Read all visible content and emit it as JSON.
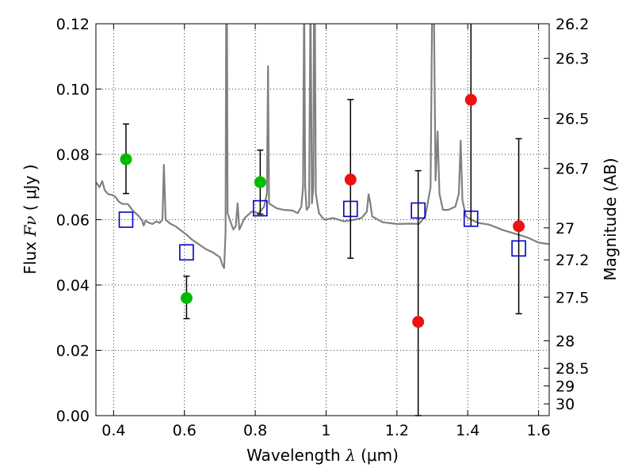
{
  "chart_data": {
    "type": "scatter",
    "title": "",
    "xlabel": {
      "text": "Wavelength ",
      "symbol": "λ",
      "unit": " (μm)"
    },
    "ylabel": {
      "text": "Flux ",
      "symbol": "Fν",
      "unit": " ( μJy )"
    },
    "ylabel_right": "Magnitude (AB)",
    "xlim": [
      0.35,
      1.63
    ],
    "ylim": [
      0.0,
      0.12
    ],
    "grid": true,
    "x_ticks": [
      0.4,
      0.6,
      0.8,
      1.0,
      1.2,
      1.4,
      1.6
    ],
    "x_tick_labels": [
      "0.4",
      "0.6",
      "0.8",
      "1",
      "1.2",
      "1.4",
      "1.6"
    ],
    "y_ticks": [
      0.0,
      0.02,
      0.04,
      0.06,
      0.08,
      0.1,
      0.12
    ],
    "y_tick_labels": [
      "0.00",
      "0.02",
      "0.04",
      "0.06",
      "0.08",
      "0.10",
      "0.12"
    ],
    "right_ticks": [
      {
        "label": "26.2",
        "flux": 0.12
      },
      {
        "label": "26.3",
        "flux": 0.1094
      },
      {
        "label": "26.5",
        "flux": 0.091
      },
      {
        "label": "26.7",
        "flux": 0.0757
      },
      {
        "label": "27",
        "flux": 0.0575
      },
      {
        "label": "27.2",
        "flux": 0.0477
      },
      {
        "label": "27.5",
        "flux": 0.0363
      },
      {
        "label": "28",
        "flux": 0.0229
      },
      {
        "label": "28.5",
        "flux": 0.0145
      },
      {
        "label": "29",
        "flux": 0.0091
      },
      {
        "label": "30",
        "flux": 0.0036
      }
    ],
    "series": [
      {
        "marker": "circle",
        "color": "#00bb00",
        "points": [
          {
            "x": 0.435,
            "y": 0.0785,
            "ylo": 0.068,
            "yhi": 0.0893
          },
          {
            "x": 0.606,
            "y": 0.036,
            "ylo": 0.0297,
            "yhi": 0.0427
          },
          {
            "x": 0.814,
            "y": 0.0715,
            "ylo": 0.0617,
            "yhi": 0.0813
          }
        ]
      },
      {
        "marker": "circle",
        "color": "#ee1111",
        "points": [
          {
            "x": 1.069,
            "y": 0.0723,
            "ylo": 0.0482,
            "yhi": 0.0968
          },
          {
            "x": 1.26,
            "y": 0.0287,
            "ylo": 0.0,
            "yhi": 0.075
          },
          {
            "x": 1.409,
            "y": 0.0967,
            "ylo": 0.058,
            "yhi": 0.13
          },
          {
            "x": 1.544,
            "y": 0.058,
            "ylo": 0.0312,
            "yhi": 0.0848
          }
        ]
      },
      {
        "marker": "open-square",
        "color": "#0000cc",
        "points": [
          {
            "x": 0.435,
            "y": 0.06
          },
          {
            "x": 0.606,
            "y": 0.05
          },
          {
            "x": 0.814,
            "y": 0.0635
          },
          {
            "x": 1.069,
            "y": 0.0633
          },
          {
            "x": 1.26,
            "y": 0.0628
          },
          {
            "x": 1.409,
            "y": 0.0603
          },
          {
            "x": 1.544,
            "y": 0.0512
          }
        ]
      }
    ],
    "spectrum": {
      "color": "#808080",
      "points": [
        [
          0.35,
          0.0715
        ],
        [
          0.36,
          0.07
        ],
        [
          0.368,
          0.0718
        ],
        [
          0.375,
          0.069
        ],
        [
          0.385,
          0.0678
        ],
        [
          0.395,
          0.0676
        ],
        [
          0.405,
          0.067
        ],
        [
          0.415,
          0.0655
        ],
        [
          0.425,
          0.0648
        ],
        [
          0.44,
          0.0648
        ],
        [
          0.455,
          0.0627
        ],
        [
          0.47,
          0.0612
        ],
        [
          0.48,
          0.0598
        ],
        [
          0.485,
          0.0582
        ],
        [
          0.49,
          0.0597
        ],
        [
          0.5,
          0.059
        ],
        [
          0.51,
          0.0587
        ],
        [
          0.52,
          0.0595
        ],
        [
          0.53,
          0.059
        ],
        [
          0.538,
          0.06
        ],
        [
          0.542,
          0.0768
        ],
        [
          0.547,
          0.06
        ],
        [
          0.56,
          0.0588
        ],
        [
          0.575,
          0.058
        ],
        [
          0.59,
          0.0567
        ],
        [
          0.605,
          0.0555
        ],
        [
          0.62,
          0.054
        ],
        [
          0.64,
          0.0525
        ],
        [
          0.66,
          0.051
        ],
        [
          0.68,
          0.05
        ],
        [
          0.7,
          0.0485
        ],
        [
          0.708,
          0.046
        ],
        [
          0.712,
          0.0452
        ],
        [
          0.716,
          0.056
        ],
        [
          0.718,
          0.13
        ],
        [
          0.72,
          0.13
        ],
        [
          0.722,
          0.062
        ],
        [
          0.728,
          0.06
        ],
        [
          0.738,
          0.057
        ],
        [
          0.745,
          0.058
        ],
        [
          0.75,
          0.065
        ],
        [
          0.755,
          0.057
        ],
        [
          0.77,
          0.0605
        ],
        [
          0.79,
          0.0625
        ],
        [
          0.81,
          0.062
        ],
        [
          0.825,
          0.064
        ],
        [
          0.833,
          0.068
        ],
        [
          0.836,
          0.107
        ],
        [
          0.839,
          0.065
        ],
        [
          0.86,
          0.0635
        ],
        [
          0.88,
          0.063
        ],
        [
          0.905,
          0.0628
        ],
        [
          0.92,
          0.062
        ],
        [
          0.93,
          0.064
        ],
        [
          0.935,
          0.07
        ],
        [
          0.938,
          0.13
        ],
        [
          0.941,
          0.07
        ],
        [
          0.945,
          0.063
        ],
        [
          0.952,
          0.064
        ],
        [
          0.956,
          0.13
        ],
        [
          0.96,
          0.065
        ],
        [
          0.964,
          0.07
        ],
        [
          0.966,
          0.13
        ],
        [
          0.968,
          0.13
        ],
        [
          0.971,
          0.068
        ],
        [
          0.98,
          0.062
        ],
        [
          0.995,
          0.06
        ],
        [
          1.02,
          0.0605
        ],
        [
          1.05,
          0.0595
        ],
        [
          1.08,
          0.06
        ],
        [
          1.1,
          0.0605
        ],
        [
          1.115,
          0.0625
        ],
        [
          1.12,
          0.0678
        ],
        [
          1.125,
          0.065
        ],
        [
          1.13,
          0.061
        ],
        [
          1.16,
          0.0592
        ],
        [
          1.2,
          0.0587
        ],
        [
          1.24,
          0.0588
        ],
        [
          1.262,
          0.0587
        ],
        [
          1.28,
          0.061
        ],
        [
          1.295,
          0.07
        ],
        [
          1.3,
          0.13
        ],
        [
          1.304,
          0.13
        ],
        [
          1.309,
          0.072
        ],
        [
          1.315,
          0.087
        ],
        [
          1.32,
          0.068
        ],
        [
          1.33,
          0.063
        ],
        [
          1.345,
          0.063
        ],
        [
          1.365,
          0.064
        ],
        [
          1.375,
          0.068
        ],
        [
          1.38,
          0.0842
        ],
        [
          1.385,
          0.066
        ],
        [
          1.395,
          0.061
        ],
        [
          1.41,
          0.06
        ],
        [
          1.43,
          0.059
        ],
        [
          1.46,
          0.0585
        ],
        [
          1.5,
          0.0568
        ],
        [
          1.54,
          0.0555
        ],
        [
          1.57,
          0.0545
        ],
        [
          1.6,
          0.053
        ],
        [
          1.63,
          0.0525
        ]
      ]
    }
  }
}
